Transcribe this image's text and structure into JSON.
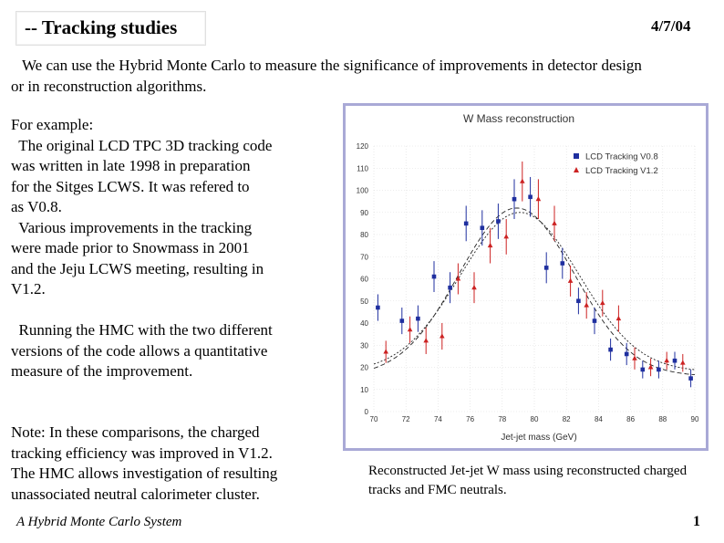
{
  "slide": {
    "title": "-- Tracking studies",
    "date": "4/7/04",
    "intro": "We can use the Hybrid Monte Carlo to measure the significance of improvements in detector design or in reconstruction algorithms.",
    "example_lines": [
      "For example:",
      "  The original LCD TPC 3D tracking code",
      "was written in late 1998 in preparation",
      "for the Sitges LCWS. It was refered to",
      "as V0.8.",
      "  Various improvements in the tracking",
      "were made prior to Snowmass in 2001",
      "and the Jeju LCWS meeting, resulting in",
      "V1.2."
    ],
    "hmc_lines": [
      "  Running the HMC with the two different",
      "versions of the code allows a quantitative",
      "measure of the improvement."
    ],
    "note_lines": [
      "Note: In these comparisons, the charged",
      "tracking efficiency was improved in V1.2.",
      "The HMC allows investigation of resulting",
      "unassociated neutral calorimeter cluster."
    ],
    "caption": "Reconstructed Jet-jet W mass using reconstructed charged tracks and FMC neutrals.",
    "footer": "A Hybrid Monte Carlo System",
    "page_number": "1"
  },
  "colors": {
    "v08": "#1f2f9f",
    "v12": "#cc2222",
    "frame": "#a9a9d6"
  },
  "chart_data": {
    "type": "scatter",
    "title": "W Mass reconstruction",
    "xlabel": "Jet-jet mass (GeV)",
    "ylabel": "",
    "xlim": [
      70,
      90
    ],
    "ylim": [
      0,
      120
    ],
    "x_ticks": [
      70,
      72,
      74,
      76,
      78,
      80,
      82,
      84,
      86,
      88,
      90
    ],
    "y_ticks": [
      0,
      10,
      20,
      30,
      40,
      50,
      60,
      70,
      80,
      90,
      100,
      110,
      120
    ],
    "legend_position": "top-right",
    "series": [
      {
        "name": "LCD Tracking V0.8",
        "marker": "circle",
        "x": [
          70.25,
          71.75,
          72.75,
          73.75,
          74.75,
          75.75,
          76.75,
          77.75,
          78.75,
          79.75,
          80.75,
          81.75,
          82.75,
          83.75,
          84.75,
          85.75,
          86.75,
          87.75,
          88.75,
          89.75
        ],
        "y": [
          47,
          41,
          42,
          61,
          56,
          85,
          83,
          86,
          96,
          97,
          65,
          67,
          50,
          41,
          28,
          26,
          19,
          19,
          23,
          15
        ],
        "err": [
          6,
          6,
          6,
          7,
          7,
          8,
          8,
          8,
          9,
          9,
          7,
          7,
          6,
          6,
          5,
          5,
          4,
          4,
          4,
          4
        ]
      },
      {
        "name": "LCD Tracking V1.2",
        "marker": "triangle",
        "x": [
          70.75,
          72.25,
          73.25,
          74.25,
          75.25,
          76.25,
          77.25,
          78.25,
          79.25,
          80.25,
          81.25,
          82.25,
          83.25,
          84.25,
          85.25,
          86.25,
          87.25,
          88.25,
          89.25
        ],
        "y": [
          27,
          37,
          32,
          34,
          60,
          56,
          75,
          79,
          104,
          96,
          85,
          59,
          48,
          49,
          42,
          24,
          20,
          23,
          22
        ],
        "err": [
          5,
          6,
          6,
          6,
          7,
          7,
          8,
          8,
          9,
          9,
          8,
          7,
          6,
          6,
          6,
          5,
          4,
          4,
          4
        ]
      }
    ],
    "fits": [
      {
        "name": "V0.8 fit",
        "style": "dashed",
        "mean": 78.9,
        "sigma": 3.6,
        "amplitude": 76,
        "baseline": 16
      },
      {
        "name": "V1.2 fit",
        "style": "dotted",
        "mean": 79.1,
        "sigma": 3.7,
        "amplitude": 72,
        "baseline": 18
      }
    ]
  }
}
